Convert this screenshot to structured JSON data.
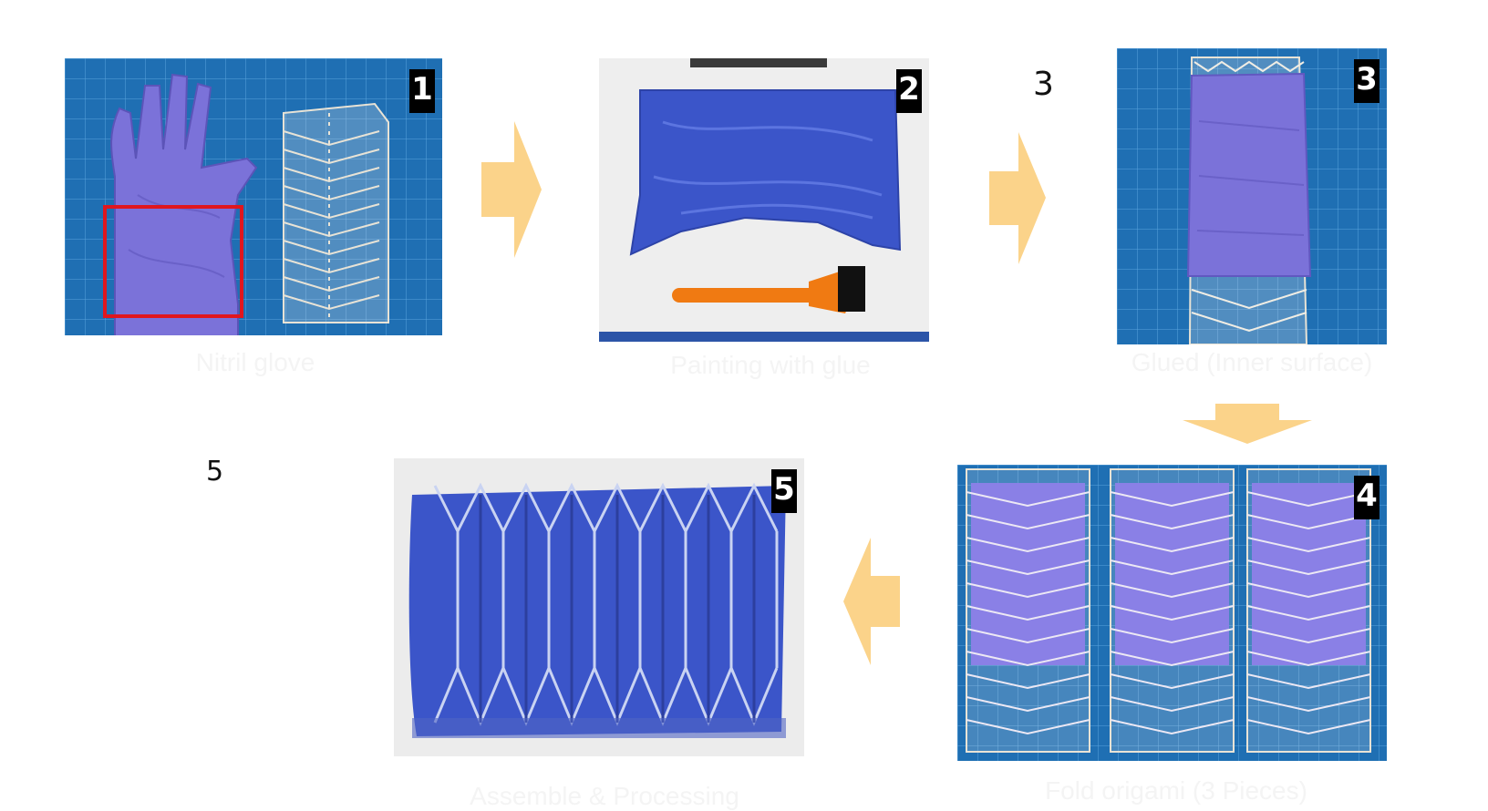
{
  "steps": [
    {
      "badge": "1",
      "caption": "Nitril glove"
    },
    {
      "badge": "2",
      "caption": "Painting with glue"
    },
    {
      "badge": "3",
      "caption": "Glued (Inner surface)"
    },
    {
      "badge": "4",
      "caption": "Fold origami (3 Pieces)"
    },
    {
      "badge": "5",
      "caption": "Assemble & Processing"
    }
  ],
  "loose_labels": {
    "three": "3",
    "five": "5"
  },
  "colors": {
    "mat_blue": "#1f6fb3",
    "glove_purple": "#7b72d9",
    "glue_blue": "#3b55c9",
    "arrow_orange": "#fbd38a",
    "highlight_red": "#e0161e",
    "brush_orange": "#f07a12"
  }
}
